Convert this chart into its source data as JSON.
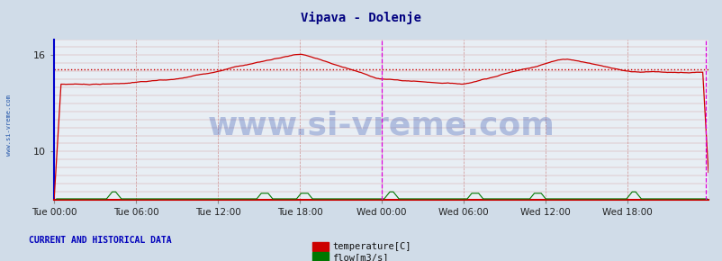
{
  "title": "Vipava - Dolenje",
  "title_color": "#000080",
  "title_fontsize": 10,
  "bg_color": "#d0dce8",
  "plot_bg_color": "#e8eef4",
  "figsize": [
    8.03,
    2.9
  ],
  "dpi": 100,
  "ylim": [
    7,
    17
  ],
  "yticks": [
    10,
    16
  ],
  "xlim": [
    0,
    575
  ],
  "xlabel_ticks": [
    0,
    72,
    144,
    216,
    288,
    360,
    432,
    504
  ],
  "xlabel_labels": [
    "Tue 00:00",
    "Tue 06:00",
    "Tue 12:00",
    "Tue 18:00",
    "Wed 00:00",
    "Wed 06:00",
    "Wed 12:00",
    "Wed 18:00"
  ],
  "grid_color": "#cc8888",
  "temp_color": "#cc0000",
  "flow_color": "#007700",
  "temp_avg_value": 15.1,
  "watermark_text": "www.si-vreme.com",
  "watermark_color": "#2244aa",
  "watermark_alpha": 0.28,
  "watermark_fontsize": 26,
  "left_label": "www.si-vreme.com",
  "left_label_color": "#2255aa",
  "vertical_line_x": 288,
  "vertical_line_color": "#dd00dd",
  "right_vline_x": 573,
  "arrow_color": "#cc0000",
  "bottom_label": "CURRENT AND HISTORICAL DATA",
  "bottom_label_color": "#0000bb",
  "legend_temp_label": "temperature[C]",
  "legend_flow_label": "flow[m3/s]"
}
